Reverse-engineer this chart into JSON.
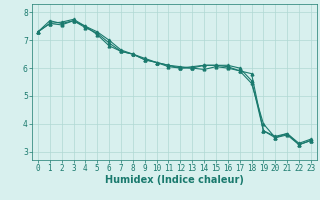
{
  "line1_x": [
    0,
    1,
    2,
    3,
    4,
    5,
    6,
    7,
    8,
    9,
    10,
    11,
    12,
    13,
    14,
    15,
    16,
    17,
    18,
    19,
    20,
    21,
    22,
    23
  ],
  "line1_y": [
    7.3,
    7.7,
    7.6,
    7.7,
    7.5,
    7.2,
    6.8,
    6.6,
    6.5,
    6.3,
    6.2,
    6.1,
    6.0,
    6.05,
    6.1,
    6.1,
    6.1,
    6.0,
    5.55,
    3.75,
    3.5,
    3.65,
    3.25,
    3.4
  ],
  "line2_x": [
    0,
    1,
    2,
    3,
    4,
    5,
    6,
    7,
    8,
    9,
    10,
    11,
    12,
    13,
    14,
    15,
    16,
    17,
    18,
    19,
    20,
    21,
    22,
    23
  ],
  "line2_y": [
    7.3,
    7.6,
    7.55,
    7.7,
    7.45,
    7.25,
    6.9,
    6.6,
    6.5,
    6.35,
    6.2,
    6.05,
    6.0,
    6.0,
    6.1,
    6.1,
    6.05,
    5.9,
    5.8,
    3.75,
    3.55,
    3.65,
    3.3,
    3.45
  ],
  "line3_x": [
    0,
    1,
    2,
    3,
    4,
    5,
    6,
    7,
    8,
    9,
    10,
    11,
    12,
    13,
    14,
    15,
    16,
    17,
    18,
    19,
    20,
    21,
    22,
    23
  ],
  "line3_y": [
    7.3,
    7.6,
    7.65,
    7.75,
    7.5,
    7.3,
    7.0,
    6.65,
    6.5,
    6.3,
    6.2,
    6.1,
    6.05,
    6.0,
    5.95,
    6.05,
    6.0,
    5.9,
    5.45,
    4.0,
    3.5,
    3.6,
    3.25,
    3.4
  ],
  "line_color": "#1a7a6e",
  "bg_color": "#d8f0ee",
  "grid_color": "#b0d8d4",
  "xlabel": "Humidex (Indice chaleur)",
  "ylim": [
    2.7,
    8.3
  ],
  "xlim": [
    -0.5,
    23.5
  ],
  "yticks": [
    3,
    4,
    5,
    6,
    7,
    8
  ],
  "xticks": [
    0,
    1,
    2,
    3,
    4,
    5,
    6,
    7,
    8,
    9,
    10,
    11,
    12,
    13,
    14,
    15,
    16,
    17,
    18,
    19,
    20,
    21,
    22,
    23
  ],
  "marker": "^",
  "marker_size": 2.0,
  "line_width": 0.8,
  "xlabel_fontsize": 7.0,
  "tick_fontsize": 5.5
}
